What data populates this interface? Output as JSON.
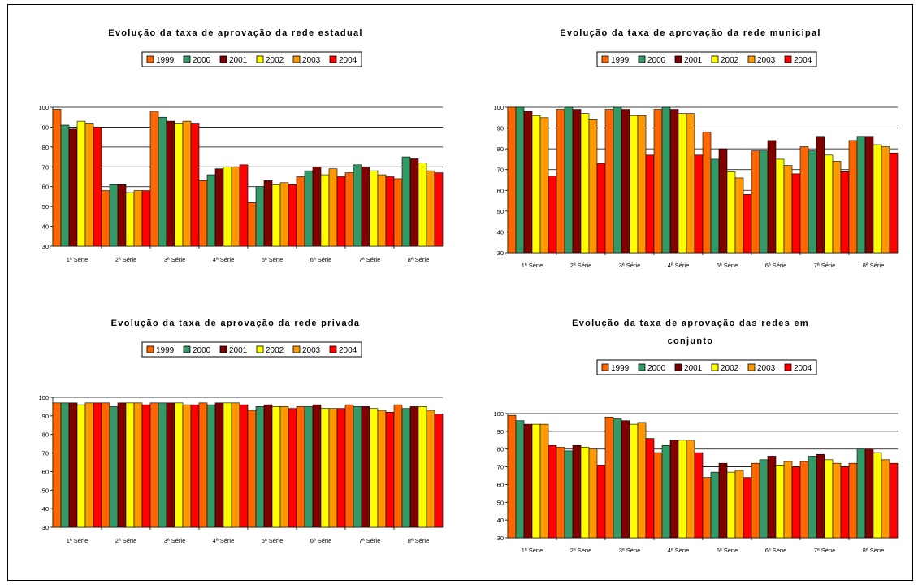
{
  "colors": {
    "1999": "#ff6600",
    "2000": "#339966",
    "2001": "#800000",
    "2002": "#ffff00",
    "2003": "#ff9900",
    "2004": "#ff0000"
  },
  "chart_data": [
    {
      "type": "bar",
      "title": "Evolução da taxa de aprovação da rede estadual",
      "categories": [
        "1ª Série",
        "2ª Série",
        "3ª Série",
        "4ª Série",
        "5ª Série",
        "6ª Série",
        "7ª Série",
        "8ª Série"
      ],
      "series": [
        {
          "name": "1999",
          "values": [
            99,
            58,
            98,
            63,
            52,
            65,
            67,
            64
          ]
        },
        {
          "name": "2000",
          "values": [
            91,
            61,
            95,
            66,
            60,
            68,
            71,
            75
          ]
        },
        {
          "name": "2001",
          "values": [
            89,
            61,
            93,
            69,
            63,
            70,
            70,
            74
          ]
        },
        {
          "name": "2002",
          "values": [
            93,
            57,
            92,
            70,
            61,
            66,
            68,
            72
          ]
        },
        {
          "name": "2003",
          "values": [
            92,
            58,
            93,
            70,
            62,
            69,
            66,
            68
          ]
        },
        {
          "name": "2004",
          "values": [
            90,
            58,
            92,
            71,
            61,
            65,
            65,
            67
          ]
        }
      ],
      "ylim": [
        30,
        100
      ],
      "yticks": [
        30,
        40,
        50,
        60,
        70,
        80,
        90,
        100
      ],
      "legend": "top"
    },
    {
      "type": "bar",
      "title": "Evolução da taxa de aprovação da rede municipal",
      "categories": [
        "1ª Série",
        "2ª Série",
        "3ª Série",
        "4ª Série",
        "5ª Série",
        "6ª Série",
        "7ª Série",
        "8ª Série"
      ],
      "series": [
        {
          "name": "1999",
          "values": [
            100,
            99,
            99,
            99,
            88,
            79,
            81,
            84
          ]
        },
        {
          "name": "2000",
          "values": [
            100,
            100,
            100,
            100,
            75,
            79,
            79,
            86
          ]
        },
        {
          "name": "2001",
          "values": [
            98,
            99,
            99,
            99,
            80,
            84,
            86,
            86
          ]
        },
        {
          "name": "2002",
          "values": [
            96,
            97,
            96,
            97,
            69,
            75,
            77,
            82
          ]
        },
        {
          "name": "2003",
          "values": [
            95,
            94,
            96,
            97,
            66,
            72,
            74,
            81
          ]
        },
        {
          "name": "2004",
          "values": [
            67,
            73,
            77,
            77,
            58,
            68,
            69,
            78
          ]
        }
      ],
      "ylim": [
        30,
        100
      ],
      "yticks": [
        30,
        40,
        50,
        60,
        70,
        80,
        90,
        100
      ],
      "legend": "top"
    },
    {
      "type": "bar",
      "title": "Evolução da taxa de aprovação da rede privada",
      "categories": [
        "1ª Série",
        "2ª Série",
        "3ª Série",
        "4ª Série",
        "5ª Série",
        "6ª Série",
        "7ª Série",
        "8ª Série"
      ],
      "series": [
        {
          "name": "1999",
          "values": [
            97,
            97,
            97,
            97,
            93,
            95,
            96,
            96
          ]
        },
        {
          "name": "2000",
          "values": [
            97,
            95,
            97,
            96,
            95,
            95,
            95,
            94
          ]
        },
        {
          "name": "2001",
          "values": [
            97,
            97,
            97,
            97,
            96,
            96,
            95,
            95
          ]
        },
        {
          "name": "2002",
          "values": [
            96,
            97,
            97,
            97,
            95,
            94,
            94,
            95
          ]
        },
        {
          "name": "2003",
          "values": [
            97,
            97,
            96,
            97,
            95,
            94,
            93,
            93
          ]
        },
        {
          "name": "2004",
          "values": [
            97,
            96,
            96,
            96,
            94,
            94,
            92,
            91
          ]
        }
      ],
      "ylim": [
        30,
        100
      ],
      "yticks": [
        30,
        40,
        50,
        60,
        70,
        80,
        90,
        100
      ],
      "legend": "top"
    },
    {
      "type": "bar",
      "title": "Evolução da taxa de aprovação das redes em conjunto",
      "title_lines": [
        "Evolução da taxa de aprovação das redes em",
        "conjunto"
      ],
      "categories": [
        "1ª Série",
        "2ª Série",
        "3ª Série",
        "4ª Série",
        "5ª Série",
        "6ª Série",
        "7ª Série",
        "8ª Série"
      ],
      "series": [
        {
          "name": "1999",
          "values": [
            99,
            81,
            98,
            78,
            64,
            72,
            73,
            72
          ]
        },
        {
          "name": "2000",
          "values": [
            96,
            79,
            97,
            82,
            67,
            74,
            76,
            80
          ]
        },
        {
          "name": "2001",
          "values": [
            94,
            82,
            96,
            85,
            72,
            76,
            77,
            80
          ]
        },
        {
          "name": "2002",
          "values": [
            94,
            81,
            94,
            85,
            67,
            71,
            74,
            78
          ]
        },
        {
          "name": "2003",
          "values": [
            94,
            80,
            95,
            85,
            68,
            73,
            72,
            74
          ]
        },
        {
          "name": "2004",
          "values": [
            82,
            71,
            86,
            78,
            64,
            70,
            70,
            72
          ]
        }
      ],
      "ylim": [
        30,
        100
      ],
      "yticks": [
        30,
        40,
        50,
        60,
        70,
        80,
        90,
        100
      ],
      "legend": "top"
    }
  ]
}
